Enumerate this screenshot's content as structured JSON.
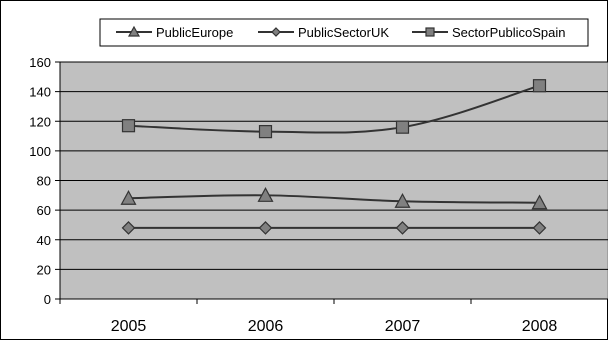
{
  "chart_data": {
    "type": "line",
    "categories": [
      "2005",
      "2006",
      "2007",
      "2008"
    ],
    "series": [
      {
        "name": "PublicEurope",
        "marker": "triangle",
        "values": [
          68,
          70,
          66,
          65
        ]
      },
      {
        "name": "PublicSectorUK",
        "marker": "diamond",
        "values": [
          48,
          48,
          48,
          48
        ]
      },
      {
        "name": "SectorPublicoSpain",
        "marker": "square",
        "values": [
          117,
          113,
          116,
          144
        ]
      }
    ],
    "yticks": [
      "0",
      "20",
      "40",
      "60",
      "80",
      "100",
      "120",
      "140",
      "160"
    ],
    "ylim": [
      0,
      160
    ],
    "grid": true,
    "legend_position": "top",
    "colors": {
      "plot_background": "#c0c0c0",
      "line": "#333333",
      "marker_fill": "#808080",
      "gridline": "#000000"
    }
  }
}
